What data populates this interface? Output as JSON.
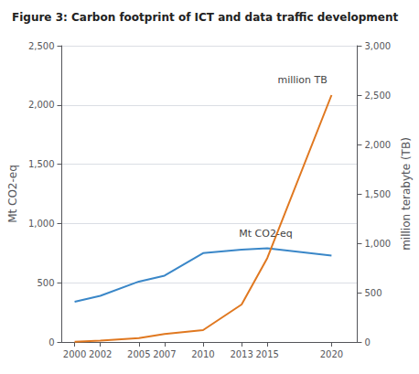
{
  "chart_data": {
    "type": "line",
    "title": "Figure 3: Carbon footprint of ICT and data traffic development",
    "x": [
      2000,
      2002,
      2005,
      2007,
      2010,
      2013,
      2015,
      2020
    ],
    "series": [
      {
        "color": "#3a87c8",
        "values": [
          340,
          390,
          510,
          560,
          750,
          780,
          790,
          730
        ]
      },
      {
        "color": "#e07820",
        "values": [
          2,
          15,
          40,
          80,
          120,
          380,
          850,
          2500
        ],
        "axis": "y2"
      }
    ],
    "xlim": [
      1999.0,
      2022.0
    ],
    "xticks": [
      2000,
      2002,
      2005,
      2007,
      2010,
      2013,
      2015,
      2020
    ],
    "ylabel": "Mt CO2-eq",
    "ylim": [
      0,
      2500
    ],
    "yticks": [
      0,
      500,
      {
        "value": 1000,
        "label": "1,000"
      },
      {
        "value": 1500,
        "label": "1,500"
      },
      {
        "value": 2000,
        "label": "2,000"
      },
      {
        "value": 2500,
        "label": "2,500"
      }
    ],
    "y2label": "million terabyte (TB)",
    "y2lim": [
      0,
      3000
    ],
    "y2ticks": [
      0,
      500,
      {
        "value": 1000,
        "label": "1,000"
      },
      {
        "value": 1500,
        "label": "1,500"
      },
      {
        "value": 2000,
        "label": "2,000"
      },
      {
        "value": 2500,
        "label": "2,500"
      },
      {
        "value": 3000,
        "label": "3,000"
      }
    ],
    "annotations": [
      {
        "text": "Mt CO2-eq",
        "x": 2012.8,
        "y": 830
      },
      {
        "text": "million TB",
        "x": 2015.8,
        "y": 2560,
        "axis": "y2"
      }
    ],
    "grid": true
  }
}
